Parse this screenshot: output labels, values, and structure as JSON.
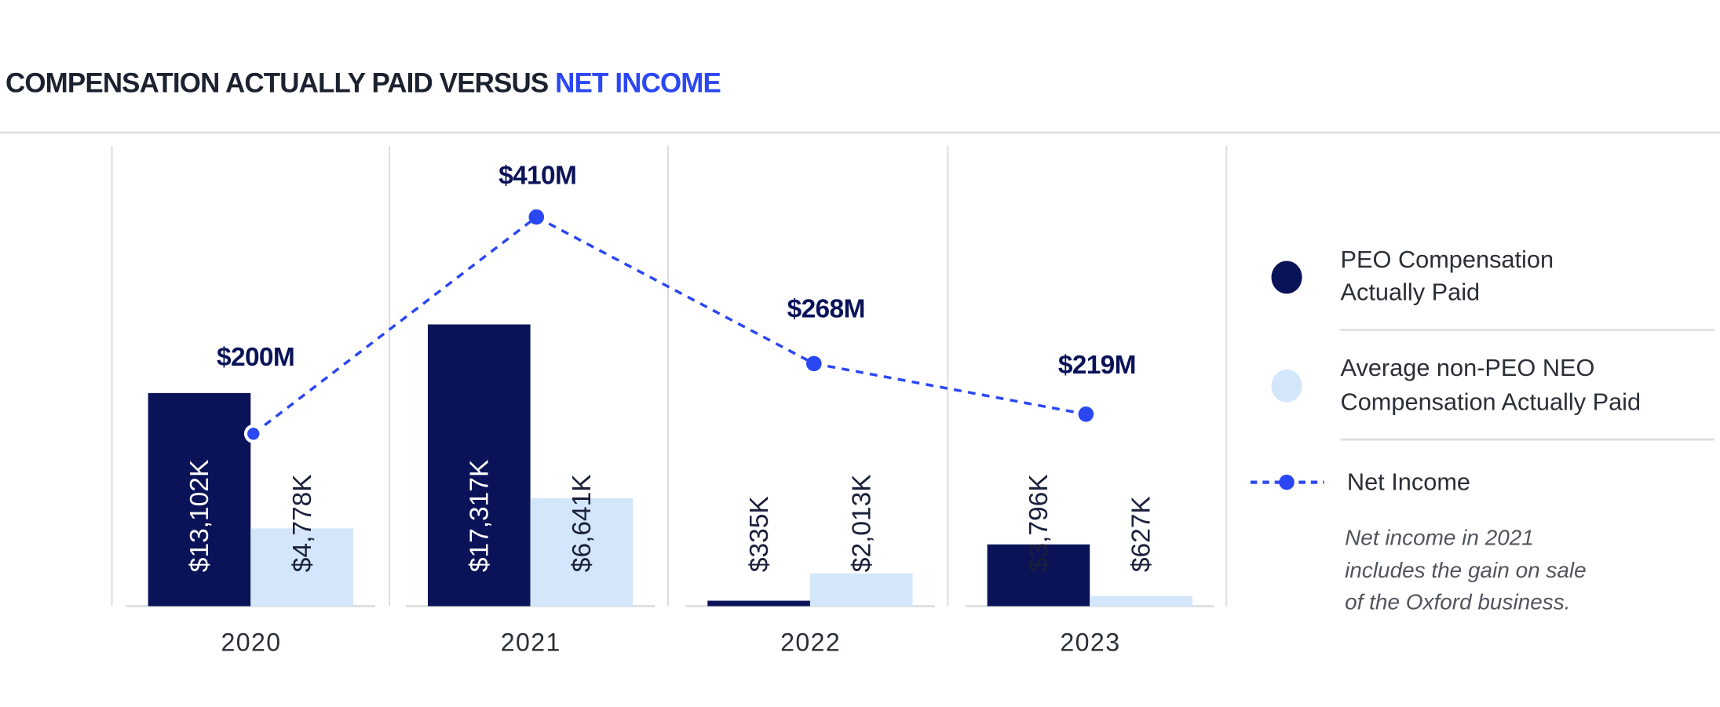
{
  "title": {
    "part1": "COMPENSATION ACTUALLY PAID VERSUS ",
    "part2": "NET INCOME"
  },
  "colors": {
    "peo": "#0b1358",
    "non_peo": "#d3e6fa",
    "net_income": "#2b47f4",
    "title_dark": "#1c2230",
    "grid": "#dcdfe2",
    "text": "#2a2f36",
    "note": "#50555c"
  },
  "chart_data": {
    "type": "bar",
    "categories": [
      "2020",
      "2021",
      "2022",
      "2023"
    ],
    "series": [
      {
        "name": "PEO Compensation Actually Paid",
        "values": [
          13102,
          17317,
          335,
          3796
        ],
        "labels": [
          "$13,102K",
          "$17,317K",
          "$335K",
          "$3,796K"
        ],
        "color": "#0b1358"
      },
      {
        "name": "Average non-PEO NEO Compensation Actually Paid",
        "values": [
          4778,
          6641,
          2013,
          627
        ],
        "labels": [
          "$4,778K",
          "$6,641K",
          "$2,013K",
          "$627K"
        ],
        "color": "#d3e6fa"
      }
    ],
    "line_series": {
      "name": "Net Income",
      "type": "line",
      "style": "dashed",
      "values": [
        200,
        410,
        268,
        219
      ],
      "labels": [
        "$200M",
        "$410M",
        "$268M",
        "$219M"
      ],
      "unit": "$M",
      "color": "#2b47f4"
    },
    "ylim": [
      0,
      28300
    ],
    "y2lim": [
      33,
      479
    ],
    "bar_unit": "$K",
    "grid": "vertical separators",
    "legend_position": "right"
  },
  "legend": {
    "items": [
      {
        "lines": [
          "PEO Compensation",
          "Actually Paid"
        ]
      },
      {
        "lines": [
          "Average non-PEO NEO",
          "Compensation Actually Paid"
        ]
      },
      {
        "lines": [
          "Net Income"
        ]
      }
    ],
    "note": [
      "Net income in 2021",
      "includes the gain on sale",
      "of the Oxford business."
    ]
  }
}
